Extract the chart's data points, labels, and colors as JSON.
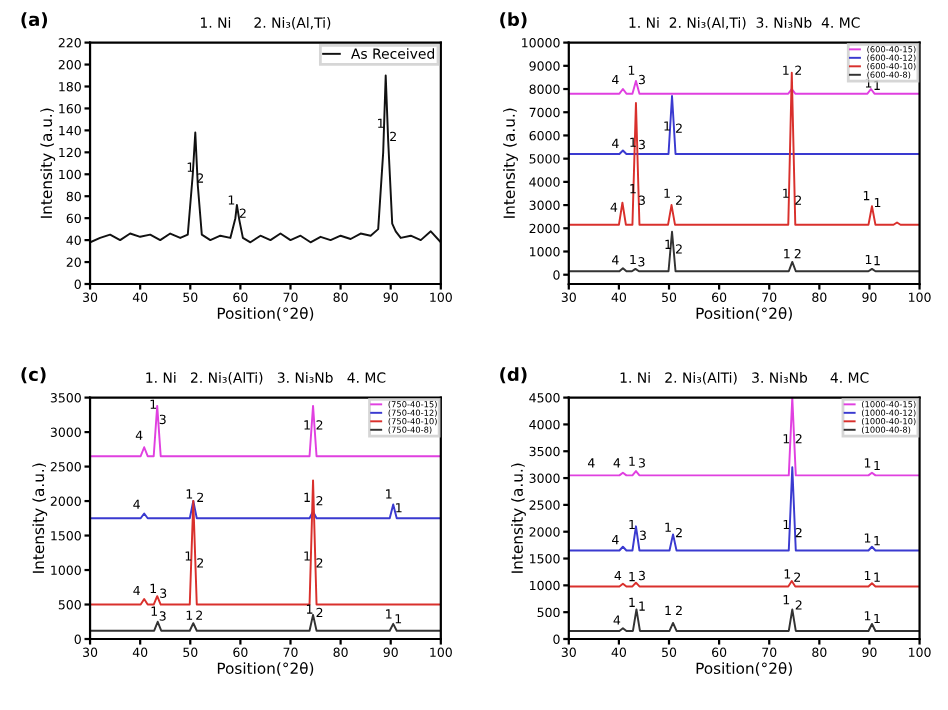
{
  "chart_data": [
    {
      "type": "line",
      "title": "(a)",
      "subtitle": "1. Ni     2. Ni₃(Al,Ti)",
      "xlabel": "Position(°2θ)",
      "ylabel": "Intensity (a.u.)",
      "xlim": [
        30,
        100
      ],
      "ylim": [
        0,
        220
      ],
      "xticks": [
        30,
        40,
        50,
        60,
        70,
        80,
        90,
        100
      ],
      "yticks": [
        0,
        20,
        40,
        60,
        80,
        100,
        120,
        140,
        160,
        180,
        200,
        220
      ],
      "legend": "top right",
      "grid": false,
      "series": [
        {
          "name": "As Received",
          "color": "#111111",
          "x": [
            30,
            32,
            34,
            36,
            38,
            40,
            42,
            44,
            46,
            48,
            49.5,
            50.5,
            51,
            51.5,
            52.3,
            54,
            56,
            58,
            59,
            59.3,
            59.8,
            60.5,
            62,
            64,
            66,
            68,
            70,
            72,
            74,
            76,
            78,
            80,
            82,
            84,
            86,
            87.5,
            88.5,
            89,
            89.5,
            90.3,
            91,
            92,
            94,
            96,
            98,
            100
          ],
          "values": [
            38,
            42,
            45,
            40,
            46,
            43,
            45,
            40,
            46,
            42,
            45,
            100,
            138,
            90,
            45,
            40,
            44,
            42,
            60,
            72,
            58,
            42,
            38,
            44,
            40,
            46,
            40,
            44,
            38,
            43,
            40,
            44,
            41,
            46,
            44,
            50,
            120,
            190,
            130,
            55,
            48,
            42,
            44,
            40,
            48,
            38
          ]
        }
      ],
      "annotations": [
        {
          "text": "1",
          "x": 50,
          "y": 100
        },
        {
          "text": "2",
          "x": 52,
          "y": 90
        },
        {
          "text": "1",
          "x": 58.2,
          "y": 70
        },
        {
          "text": "2",
          "x": 60.5,
          "y": 58
        },
        {
          "text": "1",
          "x": 88,
          "y": 140
        },
        {
          "text": "2",
          "x": 90.5,
          "y": 128
        }
      ]
    },
    {
      "type": "line",
      "title": "(b)",
      "subtitle": "1. Ni  2. Ni₃(Al,Ti)  3. Ni₃Nb  4. MC",
      "xlabel": "Position(°2θ)",
      "ylabel": "Intensity (a.u.)",
      "xlim": [
        30,
        100
      ],
      "ylim": [
        -400,
        10000
      ],
      "xticks": [
        30,
        40,
        50,
        60,
        70,
        80,
        90,
        100
      ],
      "yticks": [
        0,
        1000,
        2000,
        3000,
        4000,
        5000,
        6000,
        7000,
        8000,
        9000,
        10000
      ],
      "legend": "top right",
      "grid": false,
      "series": [
        {
          "name": "(600-40-15)",
          "color": "#e040e0",
          "x": [
            30,
            40.1,
            40.8,
            41.5,
            42.7,
            43.4,
            44.1,
            73.8,
            74.5,
            75.2,
            89.6,
            90.3,
            91,
            100
          ],
          "values": [
            7800,
            7800,
            8000,
            7800,
            7800,
            8350,
            7800,
            7800,
            8000,
            7800,
            7800,
            8000,
            7800,
            7800
          ]
        },
        {
          "name": "(600-40-12)",
          "color": "#3a3ad0",
          "x": [
            30,
            40.1,
            40.8,
            41.5,
            49.9,
            50.6,
            51.3,
            100
          ],
          "values": [
            5200,
            5200,
            5350,
            5200,
            5200,
            7700,
            5200,
            5200
          ]
        },
        {
          "name": "(600-40-10)",
          "color": "#d9302c",
          "x": [
            30,
            40,
            40.7,
            41.4,
            42.7,
            43.4,
            44.1,
            49.8,
            50.5,
            51.2,
            73.8,
            74.5,
            75.2,
            89.8,
            90.5,
            91.2,
            94.8,
            95.5,
            96.2,
            100
          ],
          "values": [
            2150,
            2150,
            3100,
            2150,
            2150,
            7400,
            2150,
            2150,
            3000,
            2150,
            2150,
            8700,
            2150,
            2150,
            2950,
            2150,
            2150,
            2250,
            2150,
            2150
          ]
        },
        {
          "name": "(600-40-8)",
          "color": "#333333",
          "x": [
            30,
            40.1,
            40.8,
            41.5,
            42.6,
            43.3,
            44,
            49.9,
            50.6,
            51.3,
            73.9,
            74.6,
            75.3,
            89.8,
            90.5,
            91.2,
            100
          ],
          "values": [
            150,
            150,
            280,
            150,
            150,
            250,
            150,
            150,
            1850,
            150,
            150,
            550,
            150,
            150,
            250,
            150,
            150
          ]
        }
      ],
      "annotations": [
        {
          "text": "4",
          "x": 39.3,
          "y": 330
        },
        {
          "text": "1",
          "x": 42.8,
          "y": 350
        },
        {
          "text": "3",
          "x": 44.5,
          "y": 250
        },
        {
          "text": "1",
          "x": 49.8,
          "y": 1000
        },
        {
          "text": "2",
          "x": 52,
          "y": 800
        },
        {
          "text": "1",
          "x": 73.5,
          "y": 600
        },
        {
          "text": "2",
          "x": 75.7,
          "y": 600
        },
        {
          "text": "1",
          "x": 89.8,
          "y": 350
        },
        {
          "text": "1",
          "x": 91.5,
          "y": 300
        },
        {
          "text": "4",
          "x": 39,
          "y": 2600
        },
        {
          "text": "1",
          "x": 42.8,
          "y": 3400
        },
        {
          "text": "3",
          "x": 44.6,
          "y": 2900
        },
        {
          "text": "1",
          "x": 49.6,
          "y": 3200
        },
        {
          "text": "2",
          "x": 52,
          "y": 2900
        },
        {
          "text": "1",
          "x": 73.3,
          "y": 3200
        },
        {
          "text": "2",
          "x": 75.8,
          "y": 2900
        },
        {
          "text": "1",
          "x": 89.4,
          "y": 3100
        },
        {
          "text": "1",
          "x": 91.6,
          "y": 2800
        },
        {
          "text": "4",
          "x": 39.3,
          "y": 5350
        },
        {
          "text": "1",
          "x": 42.8,
          "y": 5400
        },
        {
          "text": "3",
          "x": 44.6,
          "y": 5300
        },
        {
          "text": "1",
          "x": 49.6,
          "y": 6100
        },
        {
          "text": "2",
          "x": 52,
          "y": 6000
        },
        {
          "text": "4",
          "x": 39.3,
          "y": 8100
        },
        {
          "text": "1",
          "x": 42.5,
          "y": 8500
        },
        {
          "text": "3",
          "x": 44.6,
          "y": 8100
        },
        {
          "text": "1",
          "x": 73.3,
          "y": 8500
        },
        {
          "text": "2",
          "x": 75.8,
          "y": 8500
        },
        {
          "text": "1",
          "x": 89.8,
          "y": 7950
        },
        {
          "text": "1",
          "x": 91.5,
          "y": 7850
        }
      ]
    },
    {
      "type": "line",
      "title": "(c)",
      "subtitle": "1. Ni   2. Ni₃(AlTi)   3. Ni₃Nb   4. MC",
      "xlabel": "Position(°2θ)",
      "ylabel": "Intensity (a.u.)",
      "xlim": [
        30,
        100
      ],
      "ylim": [
        0,
        3500
      ],
      "xticks": [
        30,
        40,
        50,
        60,
        70,
        80,
        90,
        100
      ],
      "yticks": [
        0,
        500,
        1000,
        1500,
        2000,
        2500,
        3000,
        3500
      ],
      "legend": "top right",
      "grid": false,
      "series": [
        {
          "name": "(750-40-15)",
          "color": "#e040e0",
          "x": [
            30,
            40.1,
            40.8,
            41.5,
            42.7,
            43.4,
            44.1,
            73.8,
            74.5,
            75.2,
            100
          ],
          "values": [
            2650,
            2650,
            2780,
            2650,
            2650,
            3380,
            2650,
            2650,
            3380,
            2650,
            2650
          ]
        },
        {
          "name": "(750-40-12)",
          "color": "#3a3ad0",
          "x": [
            30,
            40.1,
            40.8,
            41.5,
            49.9,
            50.6,
            51.3,
            73.8,
            74.5,
            75.2,
            89.8,
            90.5,
            91.2,
            100
          ],
          "values": [
            1750,
            1750,
            1820,
            1750,
            1750,
            2000,
            1750,
            1750,
            1850,
            1750,
            1750,
            1950,
            1750,
            1750
          ]
        },
        {
          "name": "(750-40-10)",
          "color": "#d9302c",
          "x": [
            30,
            40.1,
            40.8,
            41.5,
            42.7,
            43.4,
            44.1,
            49.9,
            50.6,
            51.3,
            73.8,
            74.5,
            75.2,
            100
          ],
          "values": [
            500,
            500,
            580,
            500,
            500,
            620,
            500,
            500,
            2000,
            500,
            500,
            2300,
            500,
            500
          ]
        },
        {
          "name": "(750-40-8)",
          "color": "#333333",
          "x": [
            30,
            42.8,
            43.5,
            44.2,
            49.9,
            50.6,
            51.3,
            73.8,
            74.5,
            75.2,
            89.8,
            90.5,
            91.2,
            100
          ],
          "values": [
            120,
            120,
            250,
            120,
            120,
            230,
            120,
            120,
            350,
            120,
            120,
            220,
            120,
            120
          ]
        }
      ],
      "annotations": [
        {
          "text": "4",
          "x": 39.8,
          "y": 2850
        },
        {
          "text": "1",
          "x": 42.6,
          "y": 3300
        },
        {
          "text": "3",
          "x": 44.5,
          "y": 3080
        },
        {
          "text": "1",
          "x": 73.3,
          "y": 3000
        },
        {
          "text": "2",
          "x": 75.8,
          "y": 3000
        },
        {
          "text": "4",
          "x": 39.3,
          "y": 1850
        },
        {
          "text": "1",
          "x": 49.8,
          "y": 2000
        },
        {
          "text": "2",
          "x": 52,
          "y": 1950
        },
        {
          "text": "1",
          "x": 73.3,
          "y": 1950
        },
        {
          "text": "2",
          "x": 75.8,
          "y": 1900
        },
        {
          "text": "1",
          "x": 89.6,
          "y": 2000
        },
        {
          "text": "1",
          "x": 91.6,
          "y": 1800
        },
        {
          "text": "4",
          "x": 39.3,
          "y": 600
        },
        {
          "text": "1",
          "x": 42.6,
          "y": 630
        },
        {
          "text": "3",
          "x": 44.6,
          "y": 560
        },
        {
          "text": "1",
          "x": 49.6,
          "y": 1100
        },
        {
          "text": "2",
          "x": 52,
          "y": 1000
        },
        {
          "text": "1",
          "x": 73.3,
          "y": 1100
        },
        {
          "text": "2",
          "x": 75.8,
          "y": 1000
        },
        {
          "text": "1",
          "x": 42.8,
          "y": 300
        },
        {
          "text": "3",
          "x": 44.5,
          "y": 230
        },
        {
          "text": "1",
          "x": 49.8,
          "y": 240
        },
        {
          "text": "2",
          "x": 51.8,
          "y": 240
        },
        {
          "text": "1",
          "x": 73.8,
          "y": 330
        },
        {
          "text": "2",
          "x": 75.8,
          "y": 280
        },
        {
          "text": "1",
          "x": 89.6,
          "y": 260
        },
        {
          "text": "1",
          "x": 91.5,
          "y": 190
        }
      ]
    },
    {
      "type": "line",
      "title": "(d)",
      "subtitle": "1. Ni   2. Ni₃(AlTi)   3. Ni₃Nb     4. MC",
      "xlabel": "Position(°2θ)",
      "ylabel": "Intensity (a.u.)",
      "xlim": [
        30,
        100
      ],
      "ylim": [
        0,
        4500
      ],
      "xticks": [
        30,
        40,
        50,
        60,
        70,
        80,
        90,
        100
      ],
      "yticks": [
        0,
        500,
        1000,
        1500,
        2000,
        2500,
        3000,
        3500,
        4000,
        4500
      ],
      "legend": "top right",
      "grid": false,
      "series": [
        {
          "name": "(1000-40-15)",
          "color": "#e040e0",
          "x": [
            30,
            40.1,
            40.8,
            41.5,
            42.7,
            43.4,
            44.1,
            73.9,
            74.6,
            75.3,
            89.8,
            90.5,
            91.2,
            100
          ],
          "values": [
            3050,
            3050,
            3100,
            3050,
            3050,
            3130,
            3050,
            3050,
            4500,
            3050,
            3050,
            3100,
            3050,
            3050
          ]
        },
        {
          "name": "(1000-40-12)",
          "color": "#3a3ad0",
          "x": [
            30,
            40.1,
            40.8,
            41.5,
            42.7,
            43.4,
            44.1,
            50.1,
            50.8,
            51.5,
            73.9,
            74.6,
            75.3,
            89.8,
            90.5,
            91.2,
            100
          ],
          "values": [
            1650,
            1650,
            1720,
            1650,
            1650,
            2100,
            1650,
            1650,
            1950,
            1650,
            1650,
            3200,
            1650,
            1650,
            1720,
            1650,
            1650
          ]
        },
        {
          "name": "(1000-40-10)",
          "color": "#d9302c",
          "x": [
            30,
            40.1,
            40.8,
            41.5,
            42.7,
            43.4,
            44.1,
            73.8,
            74.5,
            75.2,
            89.8,
            90.5,
            91.2,
            100
          ],
          "values": [
            980,
            980,
            1030,
            980,
            980,
            1050,
            980,
            980,
            1080,
            980,
            980,
            1040,
            980,
            980
          ]
        },
        {
          "name": "(1000-40-8)",
          "color": "#333333",
          "x": [
            30,
            40.1,
            40.8,
            41.5,
            42.8,
            43.5,
            44.2,
            50.1,
            50.8,
            51.5,
            73.9,
            74.6,
            75.3,
            89.8,
            90.5,
            91.2,
            100
          ],
          "values": [
            150,
            150,
            200,
            150,
            150,
            550,
            150,
            150,
            300,
            150,
            150,
            550,
            150,
            150,
            280,
            150,
            150
          ]
        }
      ],
      "annotations": [
        {
          "text": "4",
          "x": 34.5,
          "y": 3150
        },
        {
          "text": "4",
          "x": 39.6,
          "y": 3150
        },
        {
          "text": "1",
          "x": 42.6,
          "y": 3180
        },
        {
          "text": "3",
          "x": 44.6,
          "y": 3150
        },
        {
          "text": "1",
          "x": 73.4,
          "y": 3600
        },
        {
          "text": "2",
          "x": 75.9,
          "y": 3600
        },
        {
          "text": "1",
          "x": 89.6,
          "y": 3150
        },
        {
          "text": "1",
          "x": 91.5,
          "y": 3100
        },
        {
          "text": "4",
          "x": 39.3,
          "y": 1720
        },
        {
          "text": "1",
          "x": 42.6,
          "y": 2000
        },
        {
          "text": "3",
          "x": 44.8,
          "y": 1800
        },
        {
          "text": "1",
          "x": 49.8,
          "y": 1950
        },
        {
          "text": "2",
          "x": 52,
          "y": 1850
        },
        {
          "text": "1",
          "x": 73.4,
          "y": 2000
        },
        {
          "text": "2",
          "x": 75.9,
          "y": 1850
        },
        {
          "text": "1",
          "x": 89.6,
          "y": 1750
        },
        {
          "text": "1",
          "x": 91.5,
          "y": 1700
        },
        {
          "text": "4",
          "x": 39.8,
          "y": 1050
        },
        {
          "text": "1",
          "x": 42.6,
          "y": 1030
        },
        {
          "text": "3",
          "x": 44.6,
          "y": 1050
        },
        {
          "text": "1",
          "x": 73.6,
          "y": 1080
        },
        {
          "text": "2",
          "x": 75.6,
          "y": 1020
        },
        {
          "text": "1",
          "x": 89.6,
          "y": 1050
        },
        {
          "text": "1",
          "x": 91.5,
          "y": 1020
        },
        {
          "text": "4",
          "x": 39.6,
          "y": 220
        },
        {
          "text": "1",
          "x": 42.6,
          "y": 550
        },
        {
          "text": "1",
          "x": 44.6,
          "y": 480
        },
        {
          "text": "1",
          "x": 49.8,
          "y": 400
        },
        {
          "text": "2",
          "x": 52,
          "y": 400
        },
        {
          "text": "1",
          "x": 73.4,
          "y": 600
        },
        {
          "text": "2",
          "x": 75.9,
          "y": 500
        },
        {
          "text": "1",
          "x": 89.6,
          "y": 300
        },
        {
          "text": "1",
          "x": 91.5,
          "y": 250
        }
      ]
    }
  ]
}
